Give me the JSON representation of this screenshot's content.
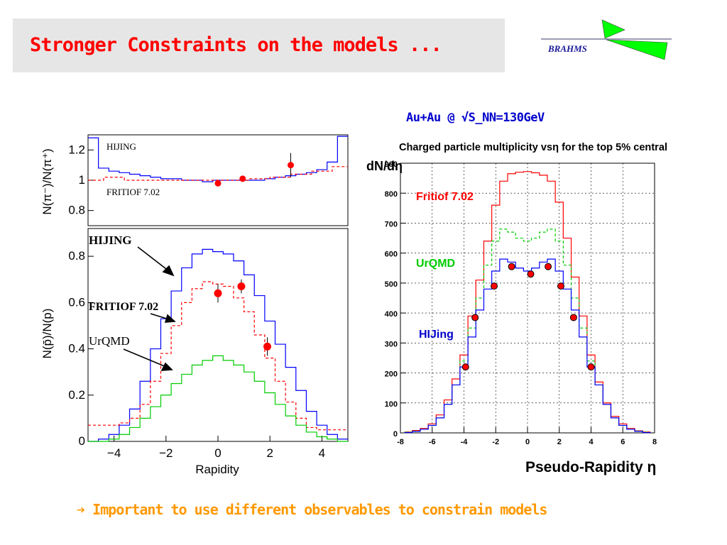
{
  "slide": {
    "title": "Stronger Constraints on the models ...",
    "logo_text": "BRAHMS",
    "arrow_glyph": "➔",
    "footer": "Important to use different observables to constrain models",
    "colors": {
      "title": "#ff0000",
      "footer": "#ff9900",
      "logo": "#1a1a99",
      "logo_green": "#00ff00"
    }
  },
  "chart_data": [
    {
      "type": "line",
      "panel": "top-left",
      "ylabel": "N(π⁻)/N(π⁺)",
      "xlim": [
        -5,
        5
      ],
      "ylim": [
        0.7,
        1.3
      ],
      "yticks": [
        "1.2",
        "1",
        "0.8"
      ],
      "grid": false,
      "series": [
        {
          "name": "HIJING",
          "style": "blue solid histogram",
          "x": [
            -4.8,
            -4.4,
            -4.0,
            -3.6,
            -3.2,
            -2.8,
            -2.4,
            -2.0,
            -1.6,
            -1.2,
            -0.8,
            -0.4,
            0,
            0.4,
            0.8,
            1.2,
            1.6,
            2.0,
            2.4,
            2.8,
            3.2,
            3.6,
            4.0,
            4.4,
            4.8
          ],
          "y": [
            1.28,
            1.08,
            1.06,
            1.05,
            1.04,
            1.03,
            1.02,
            1.01,
            1.01,
            1.0,
            1.0,
            0.99,
            1.0,
            1.0,
            1.0,
            1.0,
            1.0,
            1.01,
            1.02,
            1.03,
            1.04,
            1.05,
            1.07,
            1.12,
            1.29
          ]
        },
        {
          "name": "FRITIOF 7.02",
          "style": "red dashed histogram",
          "x": [
            -4.8,
            -4.0,
            -3.2,
            -2.4,
            -1.6,
            -0.8,
            0,
            0.8,
            1.6,
            2.4,
            3.2,
            4.0,
            4.8
          ],
          "y": [
            1.0,
            1.02,
            1.0,
            1.0,
            1.0,
            1.0,
            1.0,
            1.0,
            1.01,
            1.02,
            1.04,
            1.06,
            1.09
          ]
        },
        {
          "name": "data",
          "style": "red points",
          "x": [
            0.0,
            0.95,
            2.8
          ],
          "y": [
            0.98,
            1.01,
            1.1
          ],
          "err": [
            0.0,
            0.0,
            0.08
          ]
        }
      ],
      "annotations": [
        "HIJING",
        "FRITIOF 7.02"
      ]
    },
    {
      "type": "line",
      "panel": "bottom-left",
      "xlabel": "Rapidity",
      "ylabel": "N(p̄)/N(p)",
      "xlim": [
        -5,
        5
      ],
      "ylim": [
        0,
        0.92
      ],
      "xticks": [
        "−4",
        "−2",
        "0",
        "2",
        "4"
      ],
      "yticks": [
        "0.8",
        "0.6",
        "0.4",
        "0.2",
        "0"
      ],
      "grid": false,
      "series": [
        {
          "name": "HIJING",
          "style": "blue solid histogram",
          "x": [
            -4.8,
            -4.4,
            -4.0,
            -3.6,
            -3.2,
            -2.8,
            -2.4,
            -2.0,
            -1.6,
            -1.2,
            -0.8,
            -0.4,
            0,
            0.4,
            0.8,
            1.2,
            1.6,
            2.0,
            2.4,
            2.8,
            3.2,
            3.6,
            4.0,
            4.4,
            4.8
          ],
          "y": [
            0.0,
            0.01,
            0.03,
            0.07,
            0.14,
            0.26,
            0.4,
            0.53,
            0.65,
            0.75,
            0.81,
            0.83,
            0.82,
            0.81,
            0.78,
            0.72,
            0.63,
            0.52,
            0.42,
            0.32,
            0.22,
            0.13,
            0.07,
            0.03,
            0.01
          ]
        },
        {
          "name": "FRITIOF 7.02",
          "style": "red dashed histogram",
          "x": [
            -4.8,
            -4.4,
            -4.0,
            -3.6,
            -3.2,
            -2.8,
            -2.4,
            -2.0,
            -1.6,
            -1.2,
            -0.8,
            -0.4,
            0,
            0.4,
            0.8,
            1.2,
            1.6,
            2.0,
            2.4,
            2.8,
            3.2,
            3.6,
            4.0,
            4.4,
            4.8
          ],
          "y": [
            0.07,
            0.07,
            0.07,
            0.08,
            0.1,
            0.16,
            0.26,
            0.38,
            0.5,
            0.6,
            0.66,
            0.69,
            0.68,
            0.67,
            0.62,
            0.56,
            0.46,
            0.36,
            0.26,
            0.17,
            0.1,
            0.06,
            0.05,
            0.05,
            0.05
          ]
        },
        {
          "name": "UrQMD",
          "style": "green solid histogram",
          "x": [
            -4.8,
            -4.4,
            -4.0,
            -3.6,
            -3.2,
            -2.8,
            -2.4,
            -2.0,
            -1.6,
            -1.2,
            -0.8,
            -0.4,
            0,
            0.4,
            0.8,
            1.2,
            1.6,
            2.0,
            2.4,
            2.8,
            3.2,
            3.6,
            4.0,
            4.4,
            4.8
          ],
          "y": [
            0.0,
            0.0,
            0.01,
            0.03,
            0.06,
            0.1,
            0.15,
            0.2,
            0.25,
            0.29,
            0.33,
            0.35,
            0.37,
            0.35,
            0.33,
            0.3,
            0.26,
            0.21,
            0.16,
            0.11,
            0.07,
            0.04,
            0.02,
            0.01,
            0.0
          ]
        },
        {
          "name": "data",
          "style": "red points",
          "x": [
            0.0,
            0.9,
            1.9
          ],
          "y": [
            0.64,
            0.67,
            0.41
          ],
          "err": [
            0.04,
            0.03,
            0.04
          ]
        }
      ],
      "annotations": [
        "HIJING",
        "FRITIOF 7.02",
        "UrQMD"
      ]
    },
    {
      "type": "line",
      "panel": "right",
      "header": "Au+Au @ √S_NN=130GeV",
      "title": "Charged particle multiplicity vsη for the top 5% central",
      "xlabel": "Pseudo-Rapidity η",
      "ylabel": "dN/dη",
      "xlim": [
        -8,
        8
      ],
      "ylim": [
        0,
        900
      ],
      "xticks": [
        "-8",
        "-6",
        "-4",
        "-2",
        "0",
        "2",
        "4",
        "6",
        "8"
      ],
      "yticks": [
        "900",
        "800",
        "700",
        "600",
        "500",
        "400",
        "300",
        "200",
        "100",
        "0"
      ],
      "grid": true,
      "series": [
        {
          "name": "Fritiof 7.02",
          "style": "red solid histogram",
          "x": [
            -7.5,
            -7,
            -6.5,
            -6,
            -5.5,
            -5,
            -4.5,
            -4,
            -3.5,
            -3,
            -2.5,
            -2,
            -1.5,
            -1,
            -0.5,
            0,
            0.5,
            1,
            1.5,
            2,
            2.5,
            3,
            3.5,
            4,
            4.5,
            5,
            5.5,
            6,
            6.5,
            7,
            7.5
          ],
          "y": [
            3,
            8,
            15,
            30,
            60,
            110,
            180,
            260,
            390,
            510,
            640,
            760,
            840,
            865,
            870,
            872,
            868,
            860,
            840,
            770,
            650,
            520,
            390,
            260,
            170,
            100,
            55,
            30,
            15,
            7,
            3
          ]
        },
        {
          "name": "UrQMD",
          "style": "green dashed histogram",
          "x": [
            -7.5,
            -7,
            -6.5,
            -6,
            -5.5,
            -5,
            -4.5,
            -4,
            -3.5,
            -3,
            -2.5,
            -2,
            -1.5,
            -1,
            -0.5,
            0,
            0.5,
            1,
            1.5,
            2,
            2.5,
            3,
            3.5,
            4,
            4.5,
            5,
            5.5,
            6,
            6.5,
            7,
            7.5
          ],
          "y": [
            2,
            6,
            12,
            25,
            50,
            95,
            160,
            240,
            350,
            450,
            560,
            640,
            680,
            670,
            650,
            640,
            650,
            670,
            680,
            640,
            560,
            450,
            350,
            240,
            160,
            95,
            50,
            25,
            12,
            6,
            2
          ]
        },
        {
          "name": "HIJing",
          "style": "blue solid histogram",
          "x": [
            -7.5,
            -7,
            -6.5,
            -6,
            -5.5,
            -5,
            -4.5,
            -4,
            -3.5,
            -3,
            -2.5,
            -2,
            -1.5,
            -1,
            -0.5,
            0,
            0.5,
            1,
            1.5,
            2,
            2.5,
            3,
            3.5,
            4,
            4.5,
            5,
            5.5,
            6,
            6.5,
            7,
            7.5
          ],
          "y": [
            1,
            5,
            12,
            25,
            50,
            95,
            160,
            220,
            320,
            410,
            480,
            540,
            580,
            570,
            550,
            540,
            550,
            570,
            580,
            540,
            480,
            410,
            320,
            220,
            160,
            95,
            50,
            25,
            12,
            5,
            1
          ]
        },
        {
          "name": "data",
          "style": "red points",
          "x": [
            -3.9,
            -3.3,
            -2.1,
            -1.0,
            0.2,
            1.3,
            2.1,
            2.9,
            4.0
          ],
          "y": [
            220,
            385,
            490,
            555,
            530,
            555,
            490,
            385,
            220
          ]
        }
      ],
      "annotations": [
        "Fritiof 7.02",
        "UrQMD",
        "HIJing"
      ]
    }
  ]
}
